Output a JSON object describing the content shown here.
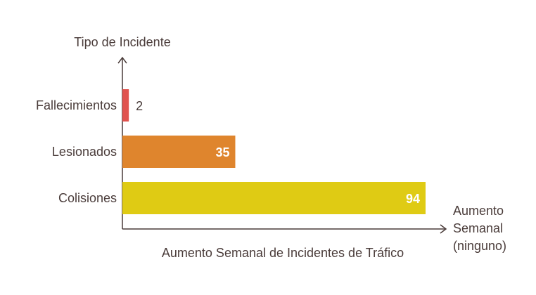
{
  "chart_data": {
    "type": "bar",
    "orientation": "horizontal",
    "title": "Aumento Semanal de Incidentes de Tráfico",
    "ylabel": "Tipo de Incidente",
    "xlabel_lines": [
      "Aumento",
      "Semanal",
      "(ninguno)"
    ],
    "categories": [
      "Fallecimientos",
      "Lesionados",
      "Colisiones"
    ],
    "values": [
      2,
      35,
      94
    ],
    "colors": [
      "#e0524e",
      "#df852d",
      "#dfcb14"
    ],
    "xlim": [
      0,
      94
    ],
    "grid": false,
    "legend": false
  }
}
